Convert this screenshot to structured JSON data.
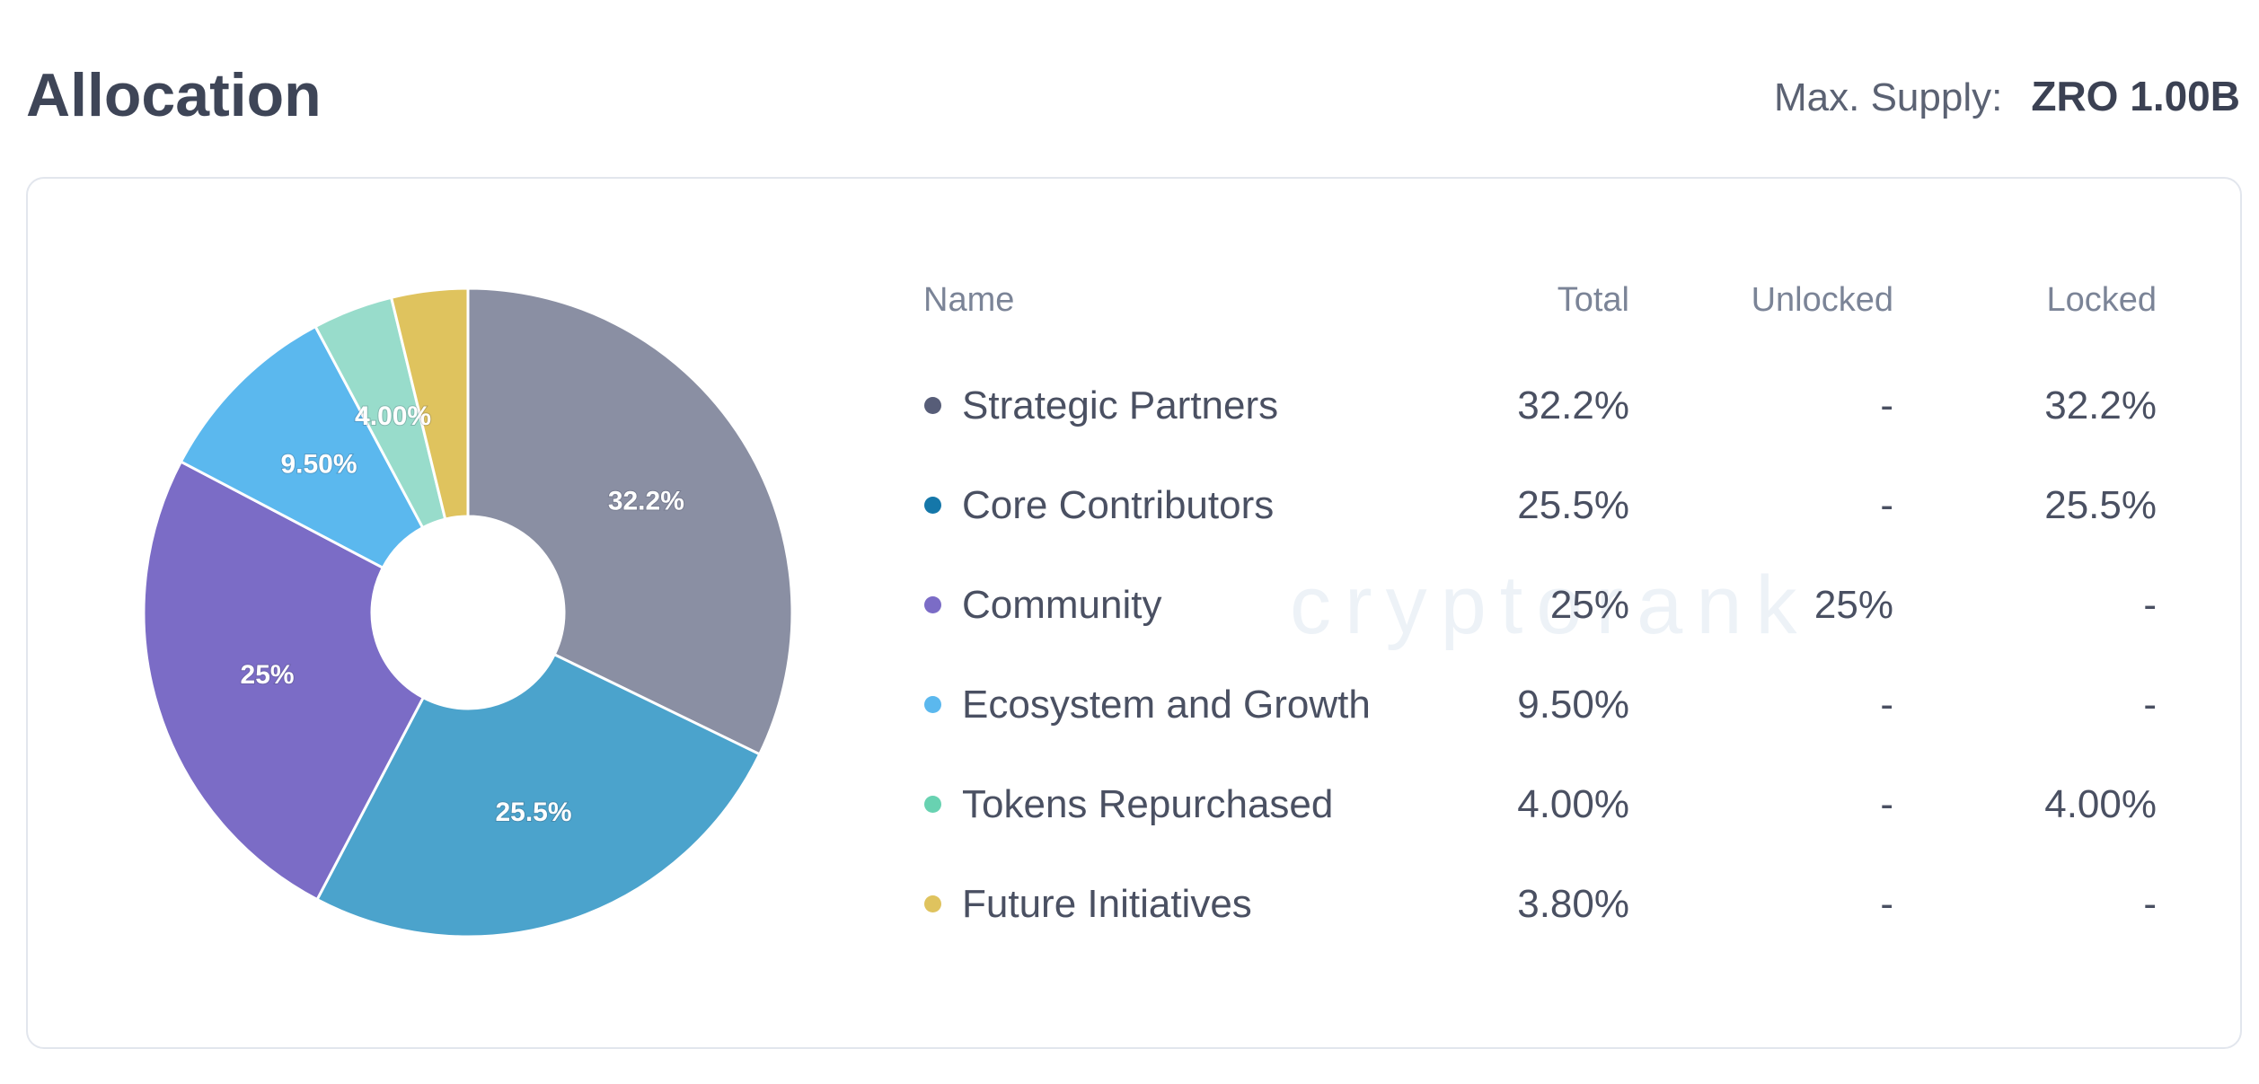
{
  "header": {
    "title": "Allocation",
    "max_supply_label": "Max. Supply:",
    "max_supply_value": "ZRO 1.00B"
  },
  "watermark": "cryptorank",
  "table": {
    "columns": [
      "Name",
      "Total",
      "Unlocked",
      "Locked"
    ],
    "rows": [
      {
        "total": "32.2%",
        "unlocked": "-",
        "locked": "32.2%",
        "dot_color": "#575d78"
      },
      {
        "total": "25.5%",
        "unlocked": "-",
        "locked": "25.5%",
        "dot_color": "#1577a9"
      },
      {
        "total": "25%",
        "unlocked": "25%",
        "locked": "-",
        "dot_color": "#7b6cc6"
      },
      {
        "total": "9.50%",
        "unlocked": "-",
        "locked": "-",
        "dot_color": "#5bb8ee"
      },
      {
        "total": "4.00%",
        "unlocked": "-",
        "locked": "4.00%",
        "dot_color": "#68d2b1"
      },
      {
        "total": "3.80%",
        "unlocked": "-",
        "locked": "-",
        "dot_color": "#dfc35e"
      }
    ]
  },
  "chart_data": {
    "type": "pie",
    "donut": true,
    "start": "top",
    "direction": "clockwise",
    "categories": [
      "Strategic Partners",
      "Core Contributors",
      "Community",
      "Ecosystem and Growth",
      "Tokens Repurchased",
      "Future Initiatives"
    ],
    "values": [
      32.2,
      25.5,
      25,
      9.5,
      4.0,
      3.8
    ],
    "data_labels": [
      "32.2%",
      "25.5%",
      "25%",
      "9.50%",
      "4.00%",
      ""
    ],
    "colors": [
      "#8a8fa3",
      "#4ba3cc",
      "#7b6cc6",
      "#5bb8ee",
      "#98dccb",
      "#dfc35e"
    ]
  }
}
